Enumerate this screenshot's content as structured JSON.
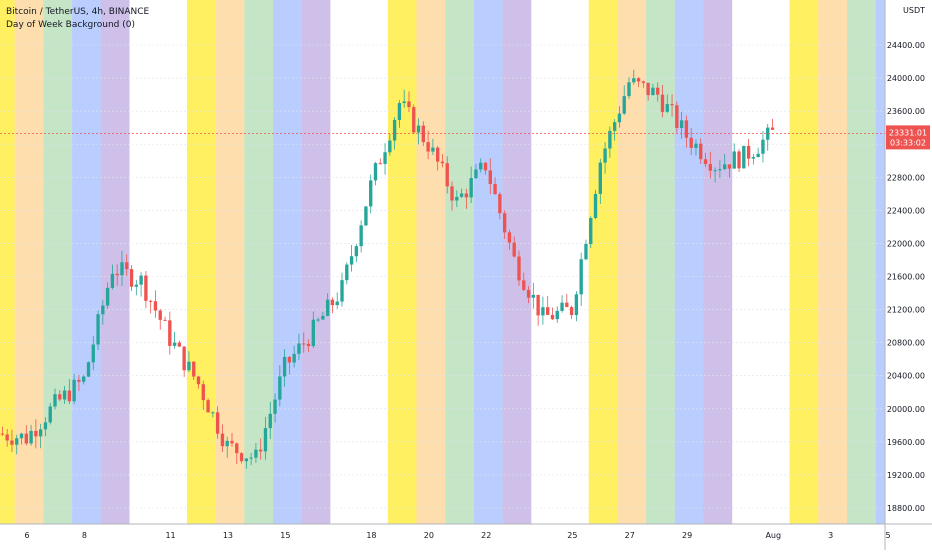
{
  "header": {
    "symbol_line": "Bitcoin / TetherUS, 4h, BINANCE",
    "indicator_line": "Day of Week Background (0)"
  },
  "axis": {
    "currency": "USDT",
    "current_price": "23331.01",
    "countdown": "03:33:02"
  },
  "colors": {
    "up": "#26a69a",
    "down": "#ef5350",
    "current_line": "#ef5350",
    "band_colors": [
      "#ffe600",
      "#ff9800",
      "#4caf50",
      "#2962ff",
      "#673ab7"
    ]
  },
  "chart_data": {
    "type": "candlestick",
    "title": "Bitcoin / TetherUS, 4h, BINANCE",
    "indicator": "Day of Week Background (0)",
    "y_tick_labels": [
      "24400.00",
      "24000.00",
      "23600.00",
      "23200.00",
      "22800.00",
      "22400.00",
      "22000.00",
      "21600.00",
      "21200.00",
      "20800.00",
      "20400.00",
      "20000.00",
      "19600.00",
      "19200.00",
      "18800.00"
    ],
    "x_tick_labels": [
      "6",
      "8",
      "11",
      "13",
      "15",
      "18",
      "20",
      "22",
      "25",
      "27",
      "29",
      "Aug",
      "3",
      "5"
    ],
    "ylim": [
      18650,
      24900
    ],
    "current_price": 23331.01,
    "grid": true,
    "bands": [
      {
        "day": "Thu",
        "color": "orange"
      },
      {
        "day": "Fri",
        "color": "green"
      },
      {
        "day": "Sat",
        "color": "blue"
      },
      {
        "day": "Sun",
        "color": "purple"
      },
      {
        "day": "Mon",
        "color": "none"
      },
      {
        "day": "Tue",
        "color": "none"
      },
      {
        "day": "Wed",
        "color": "yellow"
      }
    ],
    "daily_closes": [
      19650,
      20050,
      20350,
      21700,
      21550,
      20850,
      20300,
      19550,
      19400,
      20500,
      20950,
      21450,
      22700,
      23700,
      23200,
      22500,
      22950,
      21800,
      21100,
      21200,
      23000,
      23950,
      23800,
      23300,
      22950,
      23050,
      23331.01
    ]
  }
}
